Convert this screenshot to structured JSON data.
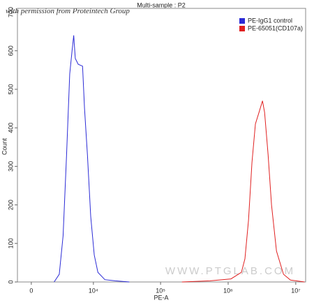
{
  "chart_data": {
    "type": "line",
    "title": "Multi-sample : P2",
    "xlabel": "PE-A",
    "ylabel": "Count",
    "xscale": "biexponential",
    "xlim": [
      -1200,
      14000000
    ],
    "xticks": [
      0,
      {
        "value": 10000,
        "label": "10⁴"
      },
      {
        "value": 100000,
        "label": "10⁵"
      },
      {
        "value": 1000000,
        "label": "10⁶"
      },
      {
        "value": 10000000,
        "label": "10⁷"
      }
    ],
    "ylim": [
      0,
      710
    ],
    "yticks": [
      0,
      100,
      200,
      300,
      400,
      500,
      600,
      700
    ],
    "legend": "upper right",
    "annotations": [
      "with permission from Proteintech Group",
      "WWW.PTGLAB.COM"
    ],
    "series": [
      {
        "name": "PE-IgG1 control",
        "color": "#2b2bd6",
        "x": [
          2100,
          2700,
          3200,
          3700,
          4200,
          4600,
          4900,
          5200,
          5800,
          6800,
          7300,
          8100,
          9100,
          10300,
          11700,
          14900,
          21400,
          34500
        ],
        "values": [
          0,
          20,
          120,
          330,
          540,
          600,
          640,
          580,
          565,
          560,
          450,
          330,
          170,
          70,
          25,
          6,
          3,
          0
        ]
      },
      {
        "name": "PE-65051(CD107a)",
        "color": "#e02020",
        "x": [
          207000,
          537000,
          1100000,
          1570000,
          1770000,
          2000000,
          2250000,
          2530000,
          2860000,
          3220000,
          3460000,
          3900000,
          4380000,
          5190000,
          6590000,
          8350000,
          13500000
        ],
        "values": [
          0,
          3,
          8,
          25,
          60,
          160,
          310,
          410,
          440,
          470,
          440,
          330,
          200,
          80,
          20,
          5,
          0
        ]
      }
    ]
  }
}
